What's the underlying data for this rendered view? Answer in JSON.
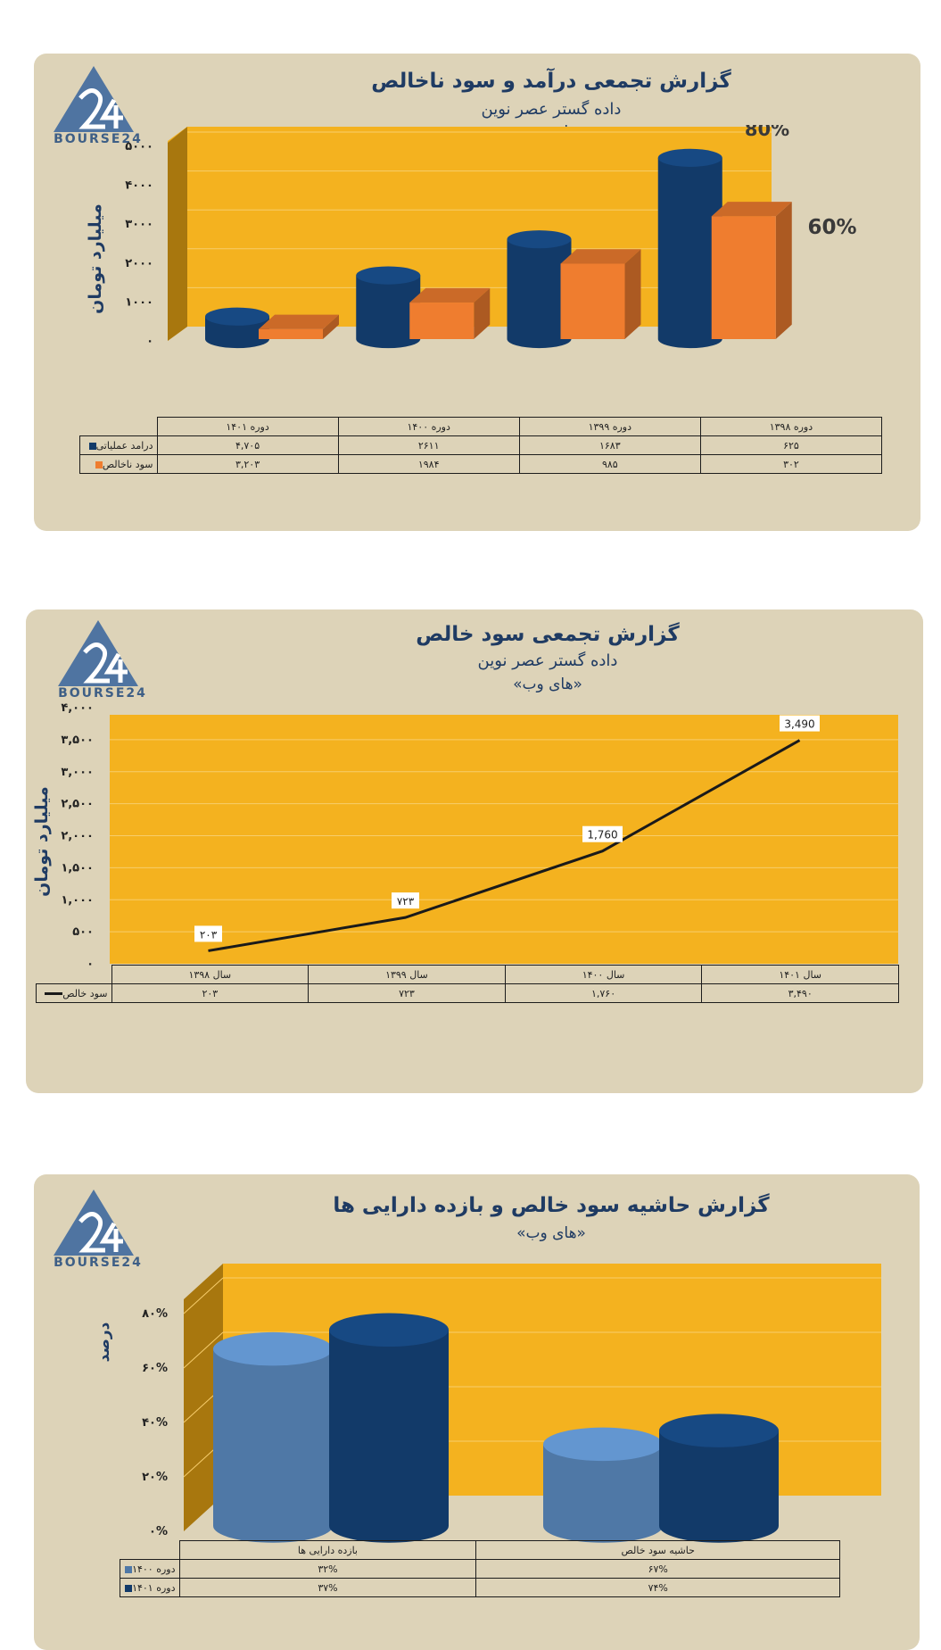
{
  "logo": {
    "text": "BOURSE24",
    "color": "#4f74a1"
  },
  "colors": {
    "panel": "#ddd3b8",
    "plot": "#f4b21f",
    "navy": "#123a69",
    "orange": "#ef7d2f",
    "light_blue": "#4f78a6",
    "text": "#1f3b63"
  },
  "chart_data": [
    {
      "type": "bar",
      "title": "گزارش تجمعی درآمد و سود ناخالص",
      "subtitle": "داده گستر عصر نوین",
      "subtitle2": "«های وب»",
      "ylabel": "میلیارد تومان",
      "ylim": [
        0,
        5000
      ],
      "yticks": [
        "۰",
        "۱۰۰۰",
        "۲۰۰۰",
        "۳۰۰۰",
        "۴۰۰۰",
        "۵۰۰۰"
      ],
      "categories": [
        "دوره ۱۳۹۸",
        "دوره ۱۳۹۹",
        "دوره ۱۴۰۰",
        "دوره ۱۴۰۱"
      ],
      "series": [
        {
          "name": "درامد عملیاتی",
          "values": [
            625,
            1683,
            2611,
            4705
          ],
          "labels": [
            "۶۲۵",
            "۱۶۸۳",
            "۲۶۱۱",
            "۴,۷۰۵"
          ],
          "color": "#123a69",
          "shape": "cylinder"
        },
        {
          "name": "سود ناخالص",
          "values": [
            302,
            985,
            1984,
            3203
          ],
          "labels": [
            "۳۰۲",
            "۹۸۵",
            "۱۹۸۴",
            "۳,۲۰۳"
          ],
          "color": "#ef7d2f",
          "shape": "box"
        }
      ],
      "annotations": [
        "80%",
        "60%"
      ],
      "grid": true,
      "data_table": true
    },
    {
      "type": "line",
      "title": "گزارش تجمعی سود خالص",
      "subtitle": "داده گستر عصر نوین",
      "subtitle2": "«های وب»",
      "ylabel": "میلیارد تومان",
      "ylim": [
        0,
        4000
      ],
      "yticks": [
        "۰",
        "۵۰۰",
        "۱,۰۰۰",
        "۱,۵۰۰",
        "۲,۰۰۰",
        "۲,۵۰۰",
        "۳,۰۰۰",
        "۳,۵۰۰",
        "۴,۰۰۰"
      ],
      "categories": [
        "سال ۱۳۹۸",
        "سال ۱۳۹۹",
        "سال ۱۴۰۰",
        "سال ۱۴۰۱"
      ],
      "series": [
        {
          "name": "سود خالص",
          "values": [
            203,
            723,
            1760,
            3490
          ],
          "data_labels": [
            "۲۰۳",
            "۷۲۳",
            "1,760",
            "3,490"
          ],
          "table_labels": [
            "۲۰۳",
            "۷۲۳",
            "۱,۷۶۰",
            "۳,۴۹۰"
          ],
          "color": "#1a1a1a"
        }
      ],
      "grid": true,
      "data_table": true
    },
    {
      "type": "bar",
      "title": "گزارش حاشیه سود خالص و بازده دارایی ها",
      "subtitle2": "«های وب»",
      "ylabel": "درصد",
      "ylim": [
        0,
        80
      ],
      "yticks": [
        "۰%",
        "۲۰%",
        "۴۰%",
        "۶۰%",
        "۸۰%"
      ],
      "categories": [
        "حاشیه سود خالص",
        "بازده دارایی ها"
      ],
      "series": [
        {
          "name": "دوره ۱۴۰۰",
          "values": [
            67,
            32
          ],
          "labels": [
            "۶۷%",
            "۳۲%"
          ],
          "color": "#4f78a6",
          "shape": "cylinder"
        },
        {
          "name": "دوره ۱۴۰۱",
          "values": [
            74,
            37
          ],
          "labels": [
            "۷۴%",
            "۳۷%"
          ],
          "color": "#123a69",
          "shape": "cylinder"
        }
      ],
      "grid": true,
      "data_table": true
    }
  ]
}
